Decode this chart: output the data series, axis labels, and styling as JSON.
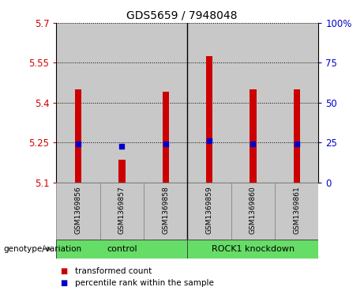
{
  "title": "GDS5659 / 7948048",
  "samples": [
    "GSM1369856",
    "GSM1369857",
    "GSM1369858",
    "GSM1369859",
    "GSM1369860",
    "GSM1369861"
  ],
  "red_values": [
    5.45,
    5.185,
    5.44,
    5.575,
    5.45,
    5.45
  ],
  "blue_values": [
    5.245,
    5.235,
    5.245,
    5.255,
    5.245,
    5.245
  ],
  "y_min": 5.1,
  "y_max": 5.7,
  "y_ticks_left": [
    5.1,
    5.25,
    5.4,
    5.55,
    5.7
  ],
  "y_ticks_right": [
    0,
    25,
    50,
    75,
    100
  ],
  "bar_color": "#CC0000",
  "dot_color": "#0000CC",
  "bar_width": 0.15,
  "dot_size": 25,
  "bg_color": "#C8C8C8",
  "col_edge_color": "#888888",
  "left_tick_color": "#CC0000",
  "right_tick_color": "#0000CC",
  "control_color": "#66DD66",
  "knockdown_color": "#66DD66",
  "legend_items": [
    {
      "label": "transformed count",
      "color": "#CC0000"
    },
    {
      "label": "percentile rank within the sample",
      "color": "#0000CC"
    }
  ],
  "genotype_label": "genotype/variation"
}
